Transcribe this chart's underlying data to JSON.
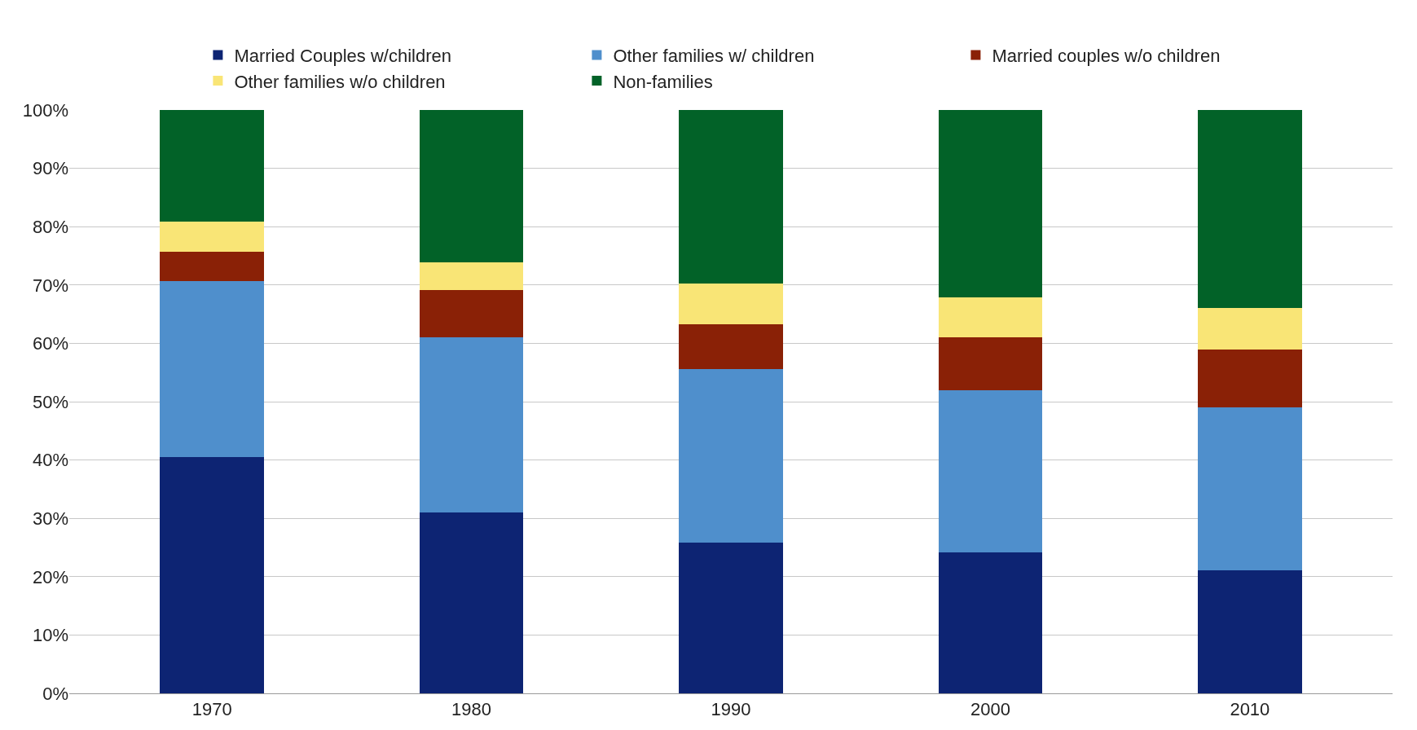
{
  "chart_data": {
    "type": "bar",
    "stacked": true,
    "categories": [
      "1970",
      "1980",
      "1990",
      "2000",
      "2010"
    ],
    "series": [
      {
        "name": "Married Couples w/children",
        "color": "#0d2473",
        "values": [
          40.5,
          31.0,
          25.8,
          24.1,
          21.1
        ]
      },
      {
        "name": "Other families w/ children",
        "color": "#4f8fcc",
        "values": [
          30.2,
          30.0,
          29.8,
          27.9,
          27.9
        ]
      },
      {
        "name": "Married couples w/o children",
        "color": "#8a2106",
        "values": [
          5.0,
          8.1,
          7.7,
          9.0,
          9.9
        ]
      },
      {
        "name": "Other families w/o children",
        "color": "#f9e576",
        "values": [
          5.2,
          4.8,
          6.9,
          6.9,
          7.2
        ]
      },
      {
        "name": "Non-families",
        "color": "#026228",
        "values": [
          19.1,
          26.1,
          29.8,
          32.1,
          33.9
        ]
      }
    ],
    "ylim": [
      0,
      100
    ],
    "yticks": [
      {
        "value": 0,
        "label": "0%"
      },
      {
        "value": 10,
        "label": "10%"
      },
      {
        "value": 20,
        "label": "20%"
      },
      {
        "value": 30,
        "label": "30%"
      },
      {
        "value": 40,
        "label": "40%"
      },
      {
        "value": 50,
        "label": "50%"
      },
      {
        "value": 60,
        "label": "60%"
      },
      {
        "value": 70,
        "label": "70%"
      },
      {
        "value": 80,
        "label": "80%"
      },
      {
        "value": 90,
        "label": "90%"
      },
      {
        "value": 100,
        "label": "100%"
      }
    ],
    "grid": "y",
    "legend": "top"
  }
}
